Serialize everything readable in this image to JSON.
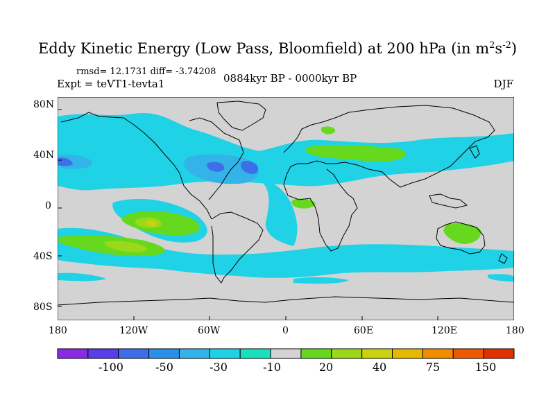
{
  "title": {
    "main": "Eddy Kinetic Energy (Low Pass, Bloomfield) at 200 hPa (in m",
    "sup1": "2",
    "mid": "s",
    "sup2": "-2",
    "end": ")"
  },
  "stats": {
    "rmsd_text": "rmsd= 12.1731 diff= -3.74208"
  },
  "period": "0884kyr BP - 0000kyr BP",
  "experiment": "Expt = teVT1-tevta1",
  "season": "DJF",
  "axes": {
    "y_ticks": [
      "80N",
      "40N",
      "0",
      "40S",
      "80S"
    ],
    "x_ticks": [
      "180",
      "120W",
      "60W",
      "0",
      "60E",
      "120E",
      "180"
    ]
  },
  "colorbar": {
    "colors": [
      "#8a2be2",
      "#5a3ce8",
      "#3f6fe8",
      "#2a8fe8",
      "#32b4e8",
      "#1fd2e6",
      "#18e0c0",
      "#d3d3d3",
      "#66d91e",
      "#9bd81a",
      "#c8d20f",
      "#e6b800",
      "#f08c00",
      "#ec5a00",
      "#e03000"
    ],
    "labels": [
      "-100",
      "-50",
      "-30",
      "-10",
      "20",
      "40",
      "75",
      "150"
    ]
  }
}
